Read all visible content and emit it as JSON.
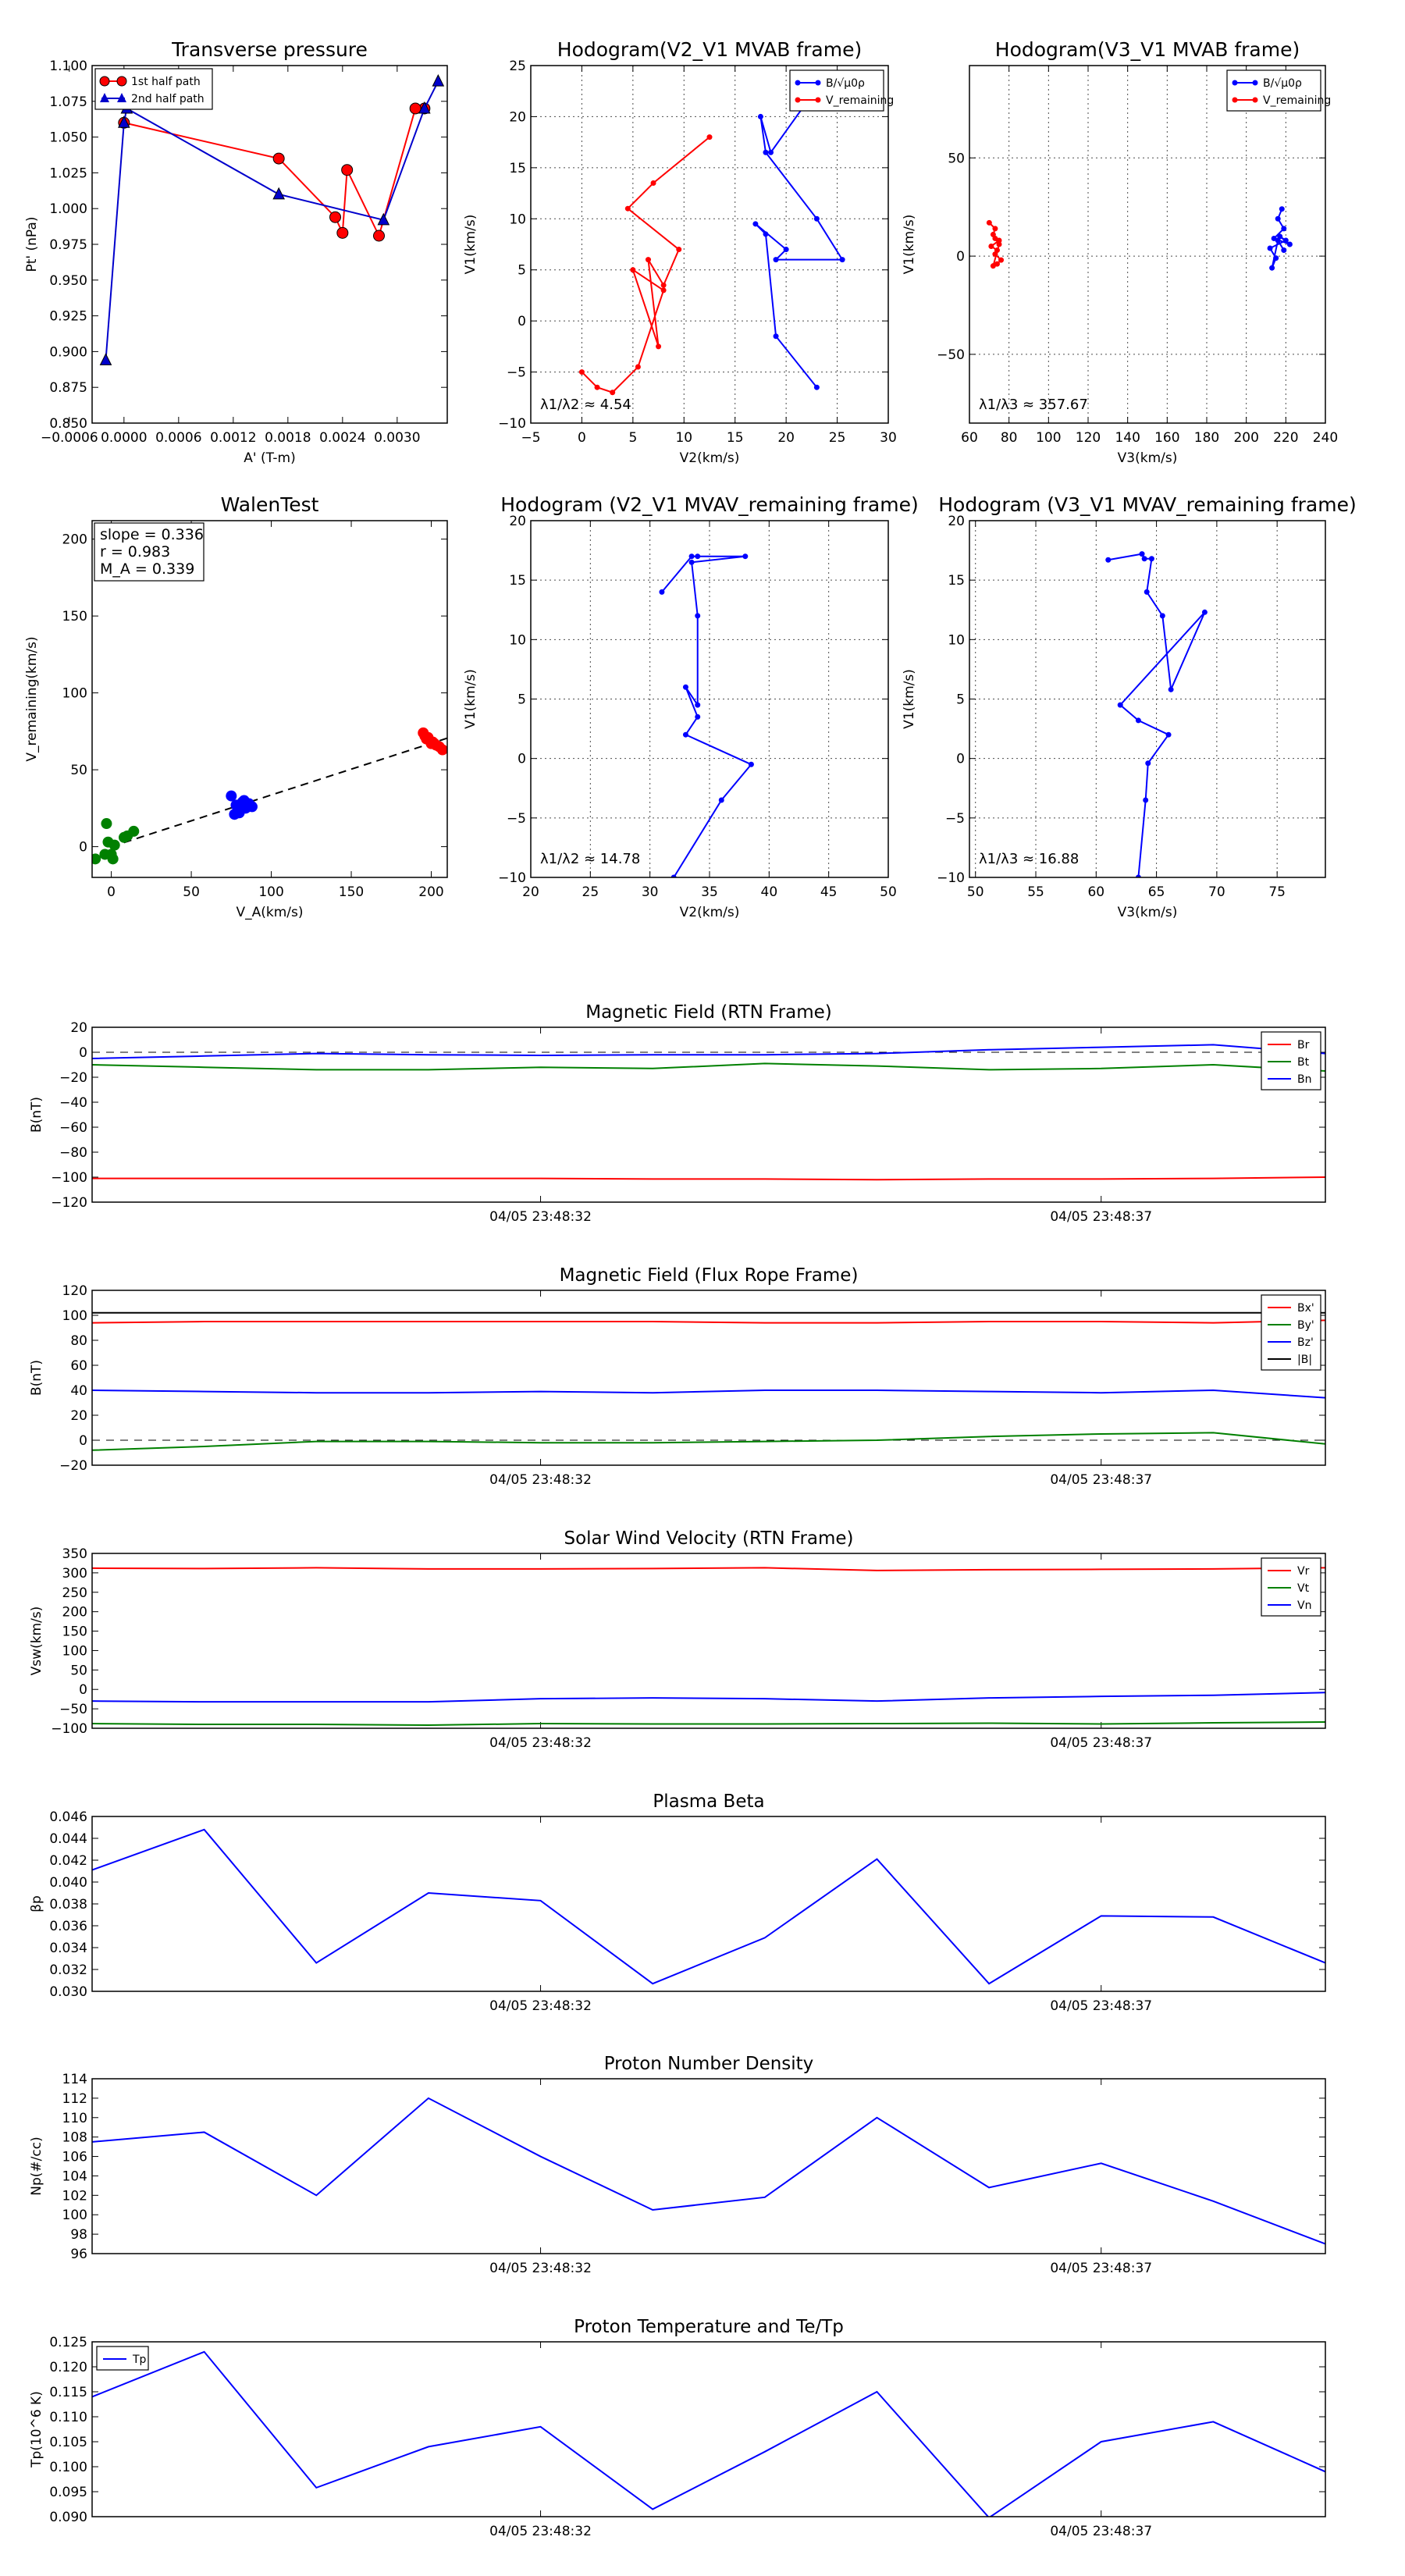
{
  "chart_data": [
    {
      "id": "pt",
      "type": "scatter",
      "title": "Transverse pressure",
      "xlabel": "A' (T-m)",
      "ylabel": "Pt' (nPa)",
      "xlim": [
        -0.00035,
        0.00355
      ],
      "ylim": [
        0.85,
        1.1
      ],
      "xticks": [
        -0.0006,
        0.0,
        0.0006,
        0.0012,
        0.0018,
        0.0024,
        0.003
      ],
      "xtick_labels": [
        "−0.0006",
        "0.0000",
        "0.0006",
        "0.0012",
        "0.0018",
        "0.0024",
        "0.0030"
      ],
      "yticks": [
        0.85,
        0.875,
        0.9,
        0.925,
        0.95,
        0.975,
        1.0,
        1.025,
        1.05,
        1.075,
        1.1
      ],
      "ytick_labels": [
        "0.850",
        "0.875",
        "0.900",
        "0.925",
        "0.950",
        "0.975",
        "1.000",
        "1.025",
        "1.050",
        "1.075",
        "1.100"
      ],
      "grid": false,
      "legend": "top-left",
      "series": [
        {
          "name": "1st half path",
          "color": "#ff0000",
          "marker": "circle",
          "x": [
            0.0033,
            0.0032,
            0.0028,
            0.00245,
            0.0024,
            0.00232,
            0.0017,
            0.0
          ],
          "y": [
            1.07,
            1.07,
            0.981,
            1.027,
            0.983,
            0.994,
            1.035,
            1.06
          ]
        },
        {
          "name": "2nd half path",
          "color": "#0000cc",
          "marker": "triangle",
          "x": [
            -0.0002,
            0.0,
            3e-05,
            0.0017,
            0.00285,
            0.0033,
            0.00345
          ],
          "y": [
            0.894,
            1.06,
            1.07,
            1.01,
            0.992,
            1.07,
            1.089
          ]
        }
      ]
    },
    {
      "id": "hodo_v2",
      "type": "line",
      "title": "Hodogram(V2_V1 MVAB frame)",
      "xlabel": "V2(km/s)",
      "ylabel": "V1(km/s)",
      "xlim": [
        -5,
        30
      ],
      "ylim": [
        -10,
        25
      ],
      "xticks": [
        -5,
        0,
        5,
        10,
        15,
        20,
        25,
        30
      ],
      "yticks": [
        -10,
        -5,
        0,
        5,
        10,
        15,
        20,
        25
      ],
      "grid": true,
      "legend": "top-right",
      "annotation": "λ1/λ2 ≈ 4.54",
      "series": [
        {
          "name": "B/√μ0ρ",
          "color": "#0000ff",
          "x": [
            23.5,
            18.5,
            17.5,
            18,
            23,
            25.5,
            19,
            20,
            17,
            18,
            19,
            23
          ],
          "y": [
            23.5,
            16.5,
            20,
            16.5,
            10,
            6,
            6,
            7,
            9.5,
            8.5,
            -1.5,
            -6.5
          ]
        },
        {
          "name": "V_remaining",
          "color": "#ff0000",
          "x": [
            12.5,
            7,
            4.5,
            9.5,
            8,
            6.5,
            7.5,
            5,
            8,
            5.5,
            3,
            1.5,
            0
          ],
          "y": [
            18,
            13.5,
            11,
            7,
            3.5,
            6,
            -2.5,
            5,
            3,
            -4.5,
            -7,
            -6.5,
            -5
          ]
        }
      ]
    },
    {
      "id": "hodo_v3",
      "type": "line",
      "title": "Hodogram(V3_V1 MVAB frame)",
      "xlabel": "V3(km/s)",
      "ylabel": "V1(km/s)",
      "xlim": [
        60,
        240
      ],
      "ylim": [
        -85,
        97
      ],
      "xticks": [
        60,
        80,
        100,
        120,
        140,
        160,
        180,
        200,
        220,
        240
      ],
      "yticks": [
        -50,
        0,
        50
      ],
      "grid": true,
      "legend": "top-right",
      "annotation": "λ1/λ3 ≈ 357.67",
      "series": [
        {
          "name": "B/√μ0ρ",
          "color": "#0000ff",
          "x": [
            218,
            216,
            219,
            214,
            222,
            217,
            220,
            212,
            215,
            213,
            216,
            219
          ],
          "y": [
            24,
            19,
            14,
            9,
            6,
            10,
            8,
            4,
            -1,
            -6,
            8,
            3
          ]
        },
        {
          "name": "V_remaining",
          "color": "#ff0000",
          "x": [
            70,
            73,
            72,
            75,
            71,
            74,
            73,
            76,
            74,
            72,
            75,
            73
          ],
          "y": [
            17,
            14,
            11,
            8,
            5,
            3,
            1,
            -2,
            -4,
            -5,
            6,
            9
          ]
        }
      ]
    },
    {
      "id": "walen",
      "type": "scatter",
      "title": "WalenTest",
      "xlabel": "V_A(km/s)",
      "ylabel": "V_remaining(km/s)",
      "xlim": [
        -12,
        210
      ],
      "ylim": [
        -20,
        212
      ],
      "xticks": [
        0,
        50,
        100,
        150,
        200
      ],
      "yticks": [
        0,
        50,
        100,
        150,
        200
      ],
      "grid": false,
      "annotation_lines": [
        "slope = 0.336",
        "r = 0.983",
        "M_A = 0.339"
      ],
      "fit_line": {
        "slope": 0.336,
        "intercept": 0,
        "x": [
          0,
          210
        ],
        "color": "#000000"
      },
      "series": [
        {
          "name": "green",
          "color": "#008000",
          "x": [
            -10,
            -3,
            -2,
            0,
            1,
            2,
            8,
            10,
            14,
            -4
          ],
          "y": [
            -8,
            15,
            3,
            -5,
            -8,
            1,
            6,
            7,
            10,
            -5
          ]
        },
        {
          "name": "blue",
          "color": "#0000ff",
          "x": [
            75,
            78,
            80,
            82,
            84,
            86,
            88,
            80,
            83,
            77,
            85,
            79
          ],
          "y": [
            33,
            27,
            22,
            29,
            25,
            28,
            26,
            24,
            30,
            21,
            26,
            22
          ]
        },
        {
          "name": "red",
          "color": "#ff0000",
          "x": [
            195,
            197,
            199,
            200,
            201,
            203,
            205,
            198,
            196,
            202,
            207
          ],
          "y": [
            74,
            70,
            69,
            67,
            68,
            66,
            65,
            71,
            72,
            67,
            63
          ]
        }
      ]
    },
    {
      "id": "hodo_v2_rem",
      "type": "line",
      "title": "Hodogram (V2_V1 MVAV_remaining frame)",
      "xlabel": "V2(km/s)",
      "ylabel": "V1(km/s)",
      "xlim": [
        20,
        50
      ],
      "ylim": [
        -10,
        20
      ],
      "xticks": [
        20,
        25,
        30,
        35,
        40,
        45,
        50
      ],
      "yticks": [
        -10,
        -5,
        0,
        5,
        10,
        15,
        20
      ],
      "grid": true,
      "annotation": "λ1/λ2 ≈ 14.78",
      "series": [
        {
          "name": "",
          "color": "#0000ff",
          "x": [
            31,
            33.5,
            34,
            38,
            33.5,
            34,
            34,
            33,
            34,
            33,
            38.5,
            36,
            32
          ],
          "y": [
            14,
            17,
            17,
            17,
            16.5,
            12,
            4.5,
            6,
            3.5,
            2,
            -0.5,
            -3.5,
            -10
          ]
        }
      ]
    },
    {
      "id": "hodo_v3_rem",
      "type": "line",
      "title": "Hodogram (V3_V1 MVAV_remaining frame)",
      "xlabel": "V3(km/s)",
      "ylabel": "V1(km/s)",
      "xlim": [
        49.5,
        79
      ],
      "ylim": [
        -10,
        20
      ],
      "xticks": [
        50,
        55,
        60,
        65,
        70,
        75
      ],
      "yticks": [
        -10,
        -5,
        0,
        5,
        10,
        15,
        20
      ],
      "grid": true,
      "annotation": "λ1/λ3 ≈ 16.88",
      "series": [
        {
          "name": "",
          "color": "#0000ff",
          "x": [
            61,
            63.8,
            64,
            64.6,
            64.2,
            65.5,
            66.2,
            69,
            62,
            63.5,
            66,
            64.3,
            64.1,
            63.5
          ],
          "y": [
            16.7,
            17.2,
            16.8,
            16.8,
            14,
            12,
            5.8,
            12.3,
            4.5,
            3.2,
            2,
            -0.4,
            -3.5,
            -10
          ]
        }
      ]
    },
    {
      "id": "ts_b_rtn",
      "type": "line",
      "title": "Magnetic Field (RTN Frame)",
      "ylabel": "B(nT)",
      "ylim": [
        -120,
        20
      ],
      "yticks": [
        -120,
        -100,
        -80,
        -60,
        -40,
        -20,
        0,
        20
      ],
      "x": [
        0,
        1,
        2,
        3,
        4,
        5,
        6,
        7,
        8,
        9,
        10,
        11
      ],
      "xticks": [
        4,
        9
      ],
      "xtick_labels": [
        "04/05 23:48:32",
        "04/05 23:48:37"
      ],
      "zero_line": true,
      "legend": "top-right",
      "series": [
        {
          "name": "Br",
          "color": "#ff0000",
          "values": [
            -101,
            -101,
            -101,
            -101,
            -101,
            -101.5,
            -101.5,
            -102,
            -101.5,
            -101.5,
            -101,
            -100
          ]
        },
        {
          "name": "Bt",
          "color": "#008000",
          "values": [
            -10,
            -12,
            -14,
            -14,
            -12,
            -13,
            -9,
            -11,
            -14,
            -13,
            -10,
            -15
          ]
        },
        {
          "name": "Bn",
          "color": "#0000ff",
          "values": [
            -5,
            -3,
            -1,
            -2,
            -2.5,
            -2,
            -2,
            -1,
            2,
            4,
            6,
            -1
          ]
        }
      ]
    },
    {
      "id": "ts_b_fr",
      "type": "line",
      "title": "Magnetic Field (Flux Rope Frame)",
      "ylabel": "B(nT)",
      "ylim": [
        -20,
        120
      ],
      "yticks": [
        -20,
        0,
        20,
        40,
        60,
        80,
        100,
        120
      ],
      "x": [
        0,
        1,
        2,
        3,
        4,
        5,
        6,
        7,
        8,
        9,
        10,
        11
      ],
      "xticks": [
        4,
        9
      ],
      "xtick_labels": [
        "04/05 23:48:32",
        "04/05 23:48:37"
      ],
      "zero_line": true,
      "legend": "top-right",
      "series": [
        {
          "name": "Bx'",
          "color": "#ff0000",
          "values": [
            94,
            95,
            95,
            95,
            95,
            95,
            94,
            94,
            95,
            95,
            94,
            96
          ]
        },
        {
          "name": "By'",
          "color": "#008000",
          "values": [
            -8,
            -5,
            -1,
            -1,
            -2,
            -2,
            -1,
            0,
            3,
            5,
            6,
            -3
          ]
        },
        {
          "name": "Bz'",
          "color": "#0000ff",
          "values": [
            40,
            39,
            38,
            38,
            39,
            38,
            40,
            40,
            39,
            38,
            40,
            34
          ]
        },
        {
          "name": "|B|",
          "color": "#000000",
          "values": [
            102,
            102,
            102,
            102,
            102,
            102,
            102,
            102,
            102,
            102,
            102,
            102
          ]
        }
      ]
    },
    {
      "id": "ts_v",
      "type": "line",
      "title": "Solar Wind Velocity (RTN Frame)",
      "ylabel": "Vsw(km/s)",
      "ylim": [
        -100,
        350
      ],
      "yticks": [
        -100,
        -50,
        0,
        50,
        100,
        150,
        200,
        250,
        300,
        350
      ],
      "x": [
        0,
        1,
        2,
        3,
        4,
        5,
        6,
        7,
        8,
        9,
        10,
        11
      ],
      "xticks": [
        4,
        9
      ],
      "xtick_labels": [
        "04/05 23:48:32",
        "04/05 23:48:37"
      ],
      "legend": "top-right",
      "series": [
        {
          "name": "Vr",
          "color": "#ff0000",
          "values": [
            312,
            311,
            313,
            310,
            310,
            311,
            313,
            306,
            308,
            309,
            310,
            313
          ]
        },
        {
          "name": "Vt",
          "color": "#008000",
          "values": [
            -88,
            -90,
            -90,
            -92,
            -88,
            -89,
            -89,
            -88,
            -87,
            -89,
            -86,
            -84
          ]
        },
        {
          "name": "Vn",
          "color": "#0000ff",
          "values": [
            -30,
            -32,
            -32,
            -32,
            -24,
            -22,
            -24,
            -30,
            -22,
            -18,
            -15,
            -8
          ]
        }
      ]
    },
    {
      "id": "ts_beta",
      "type": "line",
      "title": "Plasma Beta",
      "ylabel": "βp",
      "ylim": [
        0.03,
        0.046
      ],
      "yticks": [
        0.03,
        0.032,
        0.034,
        0.036,
        0.038,
        0.04,
        0.042,
        0.044,
        0.046
      ],
      "ytick_labels": [
        "0.030",
        "0.032",
        "0.034",
        "0.036",
        "0.038",
        "0.040",
        "0.042",
        "0.044",
        "0.046"
      ],
      "x": [
        0,
        1,
        2,
        3,
        4,
        5,
        6,
        7,
        8,
        9,
        10,
        11
      ],
      "xticks": [
        4,
        9
      ],
      "xtick_labels": [
        "04/05 23:48:32",
        "04/05 23:48:37"
      ],
      "series": [
        {
          "name": "",
          "color": "#0000ff",
          "values": [
            0.0411,
            0.0448,
            0.0326,
            0.039,
            0.0383,
            0.0307,
            0.0349,
            0.0421,
            0.0307,
            0.0369,
            0.0368,
            0.0326
          ]
        }
      ]
    },
    {
      "id": "ts_np",
      "type": "line",
      "title": "Proton Number Density",
      "ylabel": "Np(#/cc)",
      "ylim": [
        96,
        114
      ],
      "yticks": [
        96,
        98,
        100,
        102,
        104,
        106,
        108,
        110,
        112,
        114
      ],
      "x": [
        0,
        1,
        2,
        3,
        4,
        5,
        6,
        7,
        8,
        9,
        10,
        11
      ],
      "xticks": [
        4,
        9
      ],
      "xtick_labels": [
        "04/05 23:48:32",
        "04/05 23:48:37"
      ],
      "series": [
        {
          "name": "",
          "color": "#0000ff",
          "values": [
            107.5,
            108.5,
            102,
            112,
            106,
            100.5,
            101.8,
            110,
            102.8,
            105.3,
            101.4,
            97
          ]
        }
      ]
    },
    {
      "id": "ts_tp",
      "type": "line",
      "title": "Proton Temperature and Te/Tp",
      "ylabel": "Tp(10^6 K)",
      "ylim": [
        0.09,
        0.125
      ],
      "yticks": [
        0.09,
        0.095,
        0.1,
        0.105,
        0.11,
        0.115,
        0.12,
        0.125
      ],
      "ytick_labels": [
        "0.090",
        "0.095",
        "0.100",
        "0.105",
        "0.110",
        "0.115",
        "0.120",
        "0.125"
      ],
      "x": [
        0,
        1,
        2,
        3,
        4,
        5,
        6,
        7,
        8,
        9,
        10,
        11
      ],
      "xticks": [
        4,
        9
      ],
      "xtick_labels": [
        "04/05 23:48:32",
        "04/05 23:48:37"
      ],
      "legend": "top-left",
      "series": [
        {
          "name": "Tp",
          "color": "#0000ff",
          "values": [
            0.114,
            0.123,
            0.0958,
            0.104,
            0.108,
            0.0915,
            0.103,
            0.115,
            0.0898,
            0.105,
            0.109,
            0.099
          ]
        }
      ]
    }
  ]
}
